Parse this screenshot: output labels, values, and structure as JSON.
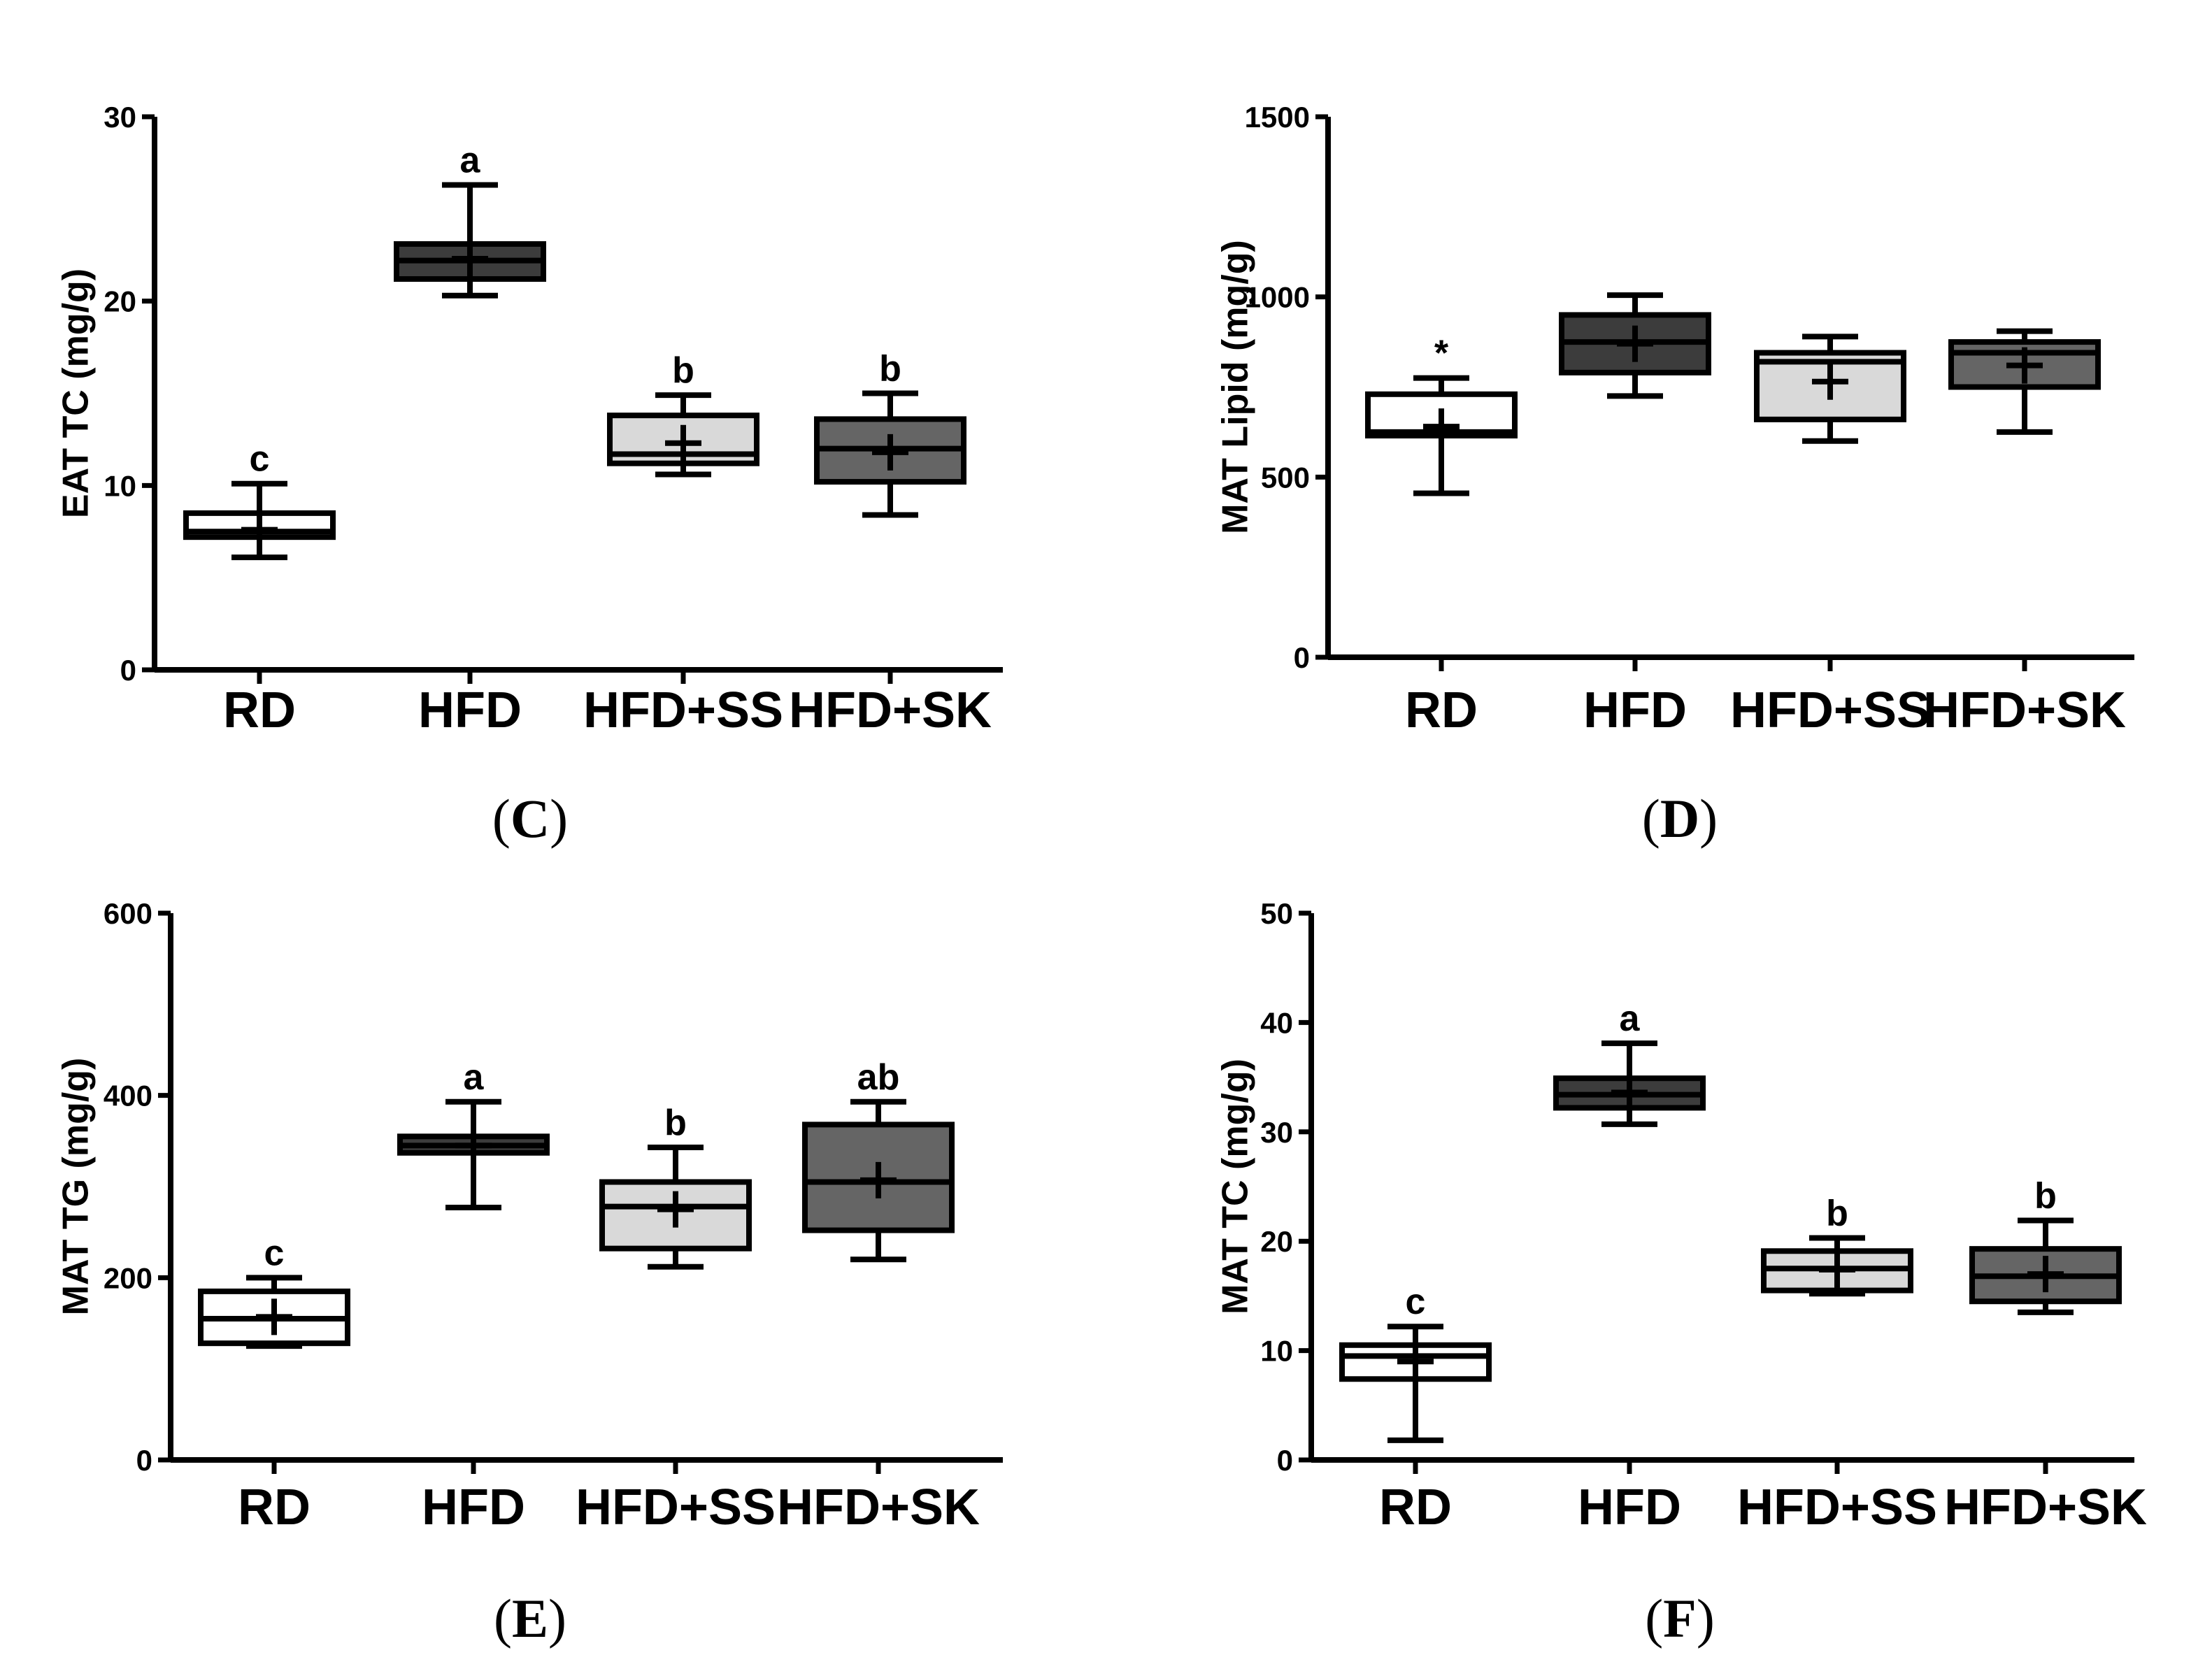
{
  "colors": {
    "RD": "#ffffff",
    "HFD": "#3c3c3c",
    "HFD+SS": "#d9d9d9",
    "HFD+SK": "#656565"
  },
  "chart_data": [
    {
      "panel": "C",
      "type": "box",
      "ylabel": "EAT TC (mg/g)",
      "ylim": [
        0,
        30
      ],
      "yticks": [
        0,
        10,
        20,
        30
      ],
      "categories": [
        "RD",
        "HFD",
        "HFD+SS",
        "HFD+SK"
      ],
      "boxes": [
        {
          "min": 6.1,
          "q1": 7.2,
          "median": 7.5,
          "q3": 8.5,
          "max": 10.1,
          "mean": 7.6,
          "label": "c"
        },
        {
          "min": 20.3,
          "q1": 21.2,
          "median": 22.2,
          "q3": 23.1,
          "max": 26.3,
          "mean": 22.3,
          "label": "a"
        },
        {
          "min": 10.6,
          "q1": 11.2,
          "median": 11.7,
          "q3": 13.8,
          "max": 14.9,
          "mean": 12.3,
          "label": "b"
        },
        {
          "min": 8.4,
          "q1": 10.2,
          "median": 12.0,
          "q3": 13.6,
          "max": 15.0,
          "mean": 11.8,
          "label": "b"
        }
      ]
    },
    {
      "panel": "D",
      "type": "box",
      "ylabel": "MAT Lipid (mg/g)",
      "ylim": [
        0,
        1500
      ],
      "yticks": [
        0,
        500,
        1000,
        1500
      ],
      "categories": [
        "RD",
        "HFD",
        "HFD+SS",
        "HFD+SK"
      ],
      "boxes": [
        {
          "min": 455,
          "q1": 615,
          "median": 625,
          "q3": 730,
          "max": 775,
          "mean": 640,
          "label": "*"
        },
        {
          "min": 725,
          "q1": 790,
          "median": 875,
          "q3": 950,
          "max": 1005,
          "mean": 870,
          "label": ""
        },
        {
          "min": 600,
          "q1": 660,
          "median": 820,
          "q3": 845,
          "max": 890,
          "mean": 765,
          "label": ""
        },
        {
          "min": 625,
          "q1": 750,
          "median": 845,
          "q3": 875,
          "max": 905,
          "mean": 810,
          "label": ""
        }
      ]
    },
    {
      "panel": "E",
      "type": "box",
      "ylabel": "MAT TG (mg/g)",
      "ylim": [
        0,
        600
      ],
      "yticks": [
        0,
        200,
        400,
        600
      ],
      "categories": [
        "RD",
        "HFD",
        "HFD+SS",
        "HFD+SK"
      ],
      "boxes": [
        {
          "min": 125,
          "q1": 128,
          "median": 155,
          "q3": 185,
          "max": 200,
          "mean": 157,
          "label": "c"
        },
        {
          "min": 277,
          "q1": 337,
          "median": 345,
          "q3": 355,
          "max": 393,
          "mean": 345,
          "label": "a"
        },
        {
          "min": 212,
          "q1": 232,
          "median": 278,
          "q3": 305,
          "max": 343,
          "mean": 275,
          "label": "b"
        },
        {
          "min": 220,
          "q1": 252,
          "median": 305,
          "q3": 368,
          "max": 393,
          "mean": 307,
          "label": "ab"
        }
      ]
    },
    {
      "panel": "F",
      "type": "box",
      "ylabel": "MAT TC (mg/g)",
      "ylim": [
        0,
        50
      ],
      "yticks": [
        0,
        10,
        20,
        30,
        40,
        50
      ],
      "categories": [
        "RD",
        "HFD",
        "HFD+SS",
        "HFD+SK"
      ],
      "boxes": [
        {
          "min": 1.8,
          "q1": 7.4,
          "median": 9.5,
          "q3": 10.5,
          "max": 12.2,
          "mean": 9.0,
          "label": "c"
        },
        {
          "min": 30.7,
          "q1": 32.2,
          "median": 33.4,
          "q3": 34.9,
          "max": 38.1,
          "mean": 33.6,
          "label": "a"
        },
        {
          "min": 15.2,
          "q1": 15.5,
          "median": 17.5,
          "q3": 19.1,
          "max": 20.3,
          "mean": 17.4,
          "label": "b"
        },
        {
          "min": 13.5,
          "q1": 14.5,
          "median": 16.8,
          "q3": 19.3,
          "max": 21.9,
          "mean": 17.0,
          "label": "b"
        }
      ]
    }
  ]
}
